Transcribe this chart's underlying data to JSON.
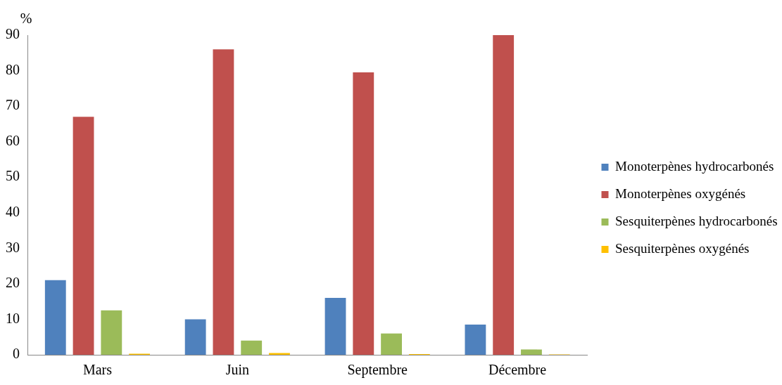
{
  "chart_data": {
    "type": "bar",
    "ylabel": "%",
    "categories": [
      "Mars",
      "Juin",
      "Septembre",
      "Décembre"
    ],
    "series": [
      {
        "name": "Monoterpènes hydrocarbonés",
        "color": "#4f81bd",
        "values": [
          21,
          10,
          16,
          8.5
        ]
      },
      {
        "name": "Monoterpènes oxygénés",
        "color": "#c0504d",
        "values": [
          67,
          86,
          79.5,
          90
        ]
      },
      {
        "name": "Sesquiterpènes hydrocarbonés",
        "color": "#9bbb59",
        "values": [
          12.5,
          4,
          6,
          1.5
        ]
      },
      {
        "name": "Sesquiterpènes oxygénés",
        "color": "#ffc000",
        "values": [
          0.3,
          0.5,
          0.2,
          0.1
        ]
      }
    ],
    "ylim": [
      0,
      90
    ],
    "yticks": [
      0,
      10,
      20,
      30,
      40,
      50,
      60,
      70,
      80,
      90
    ],
    "grid": false,
    "legend": "right"
  }
}
